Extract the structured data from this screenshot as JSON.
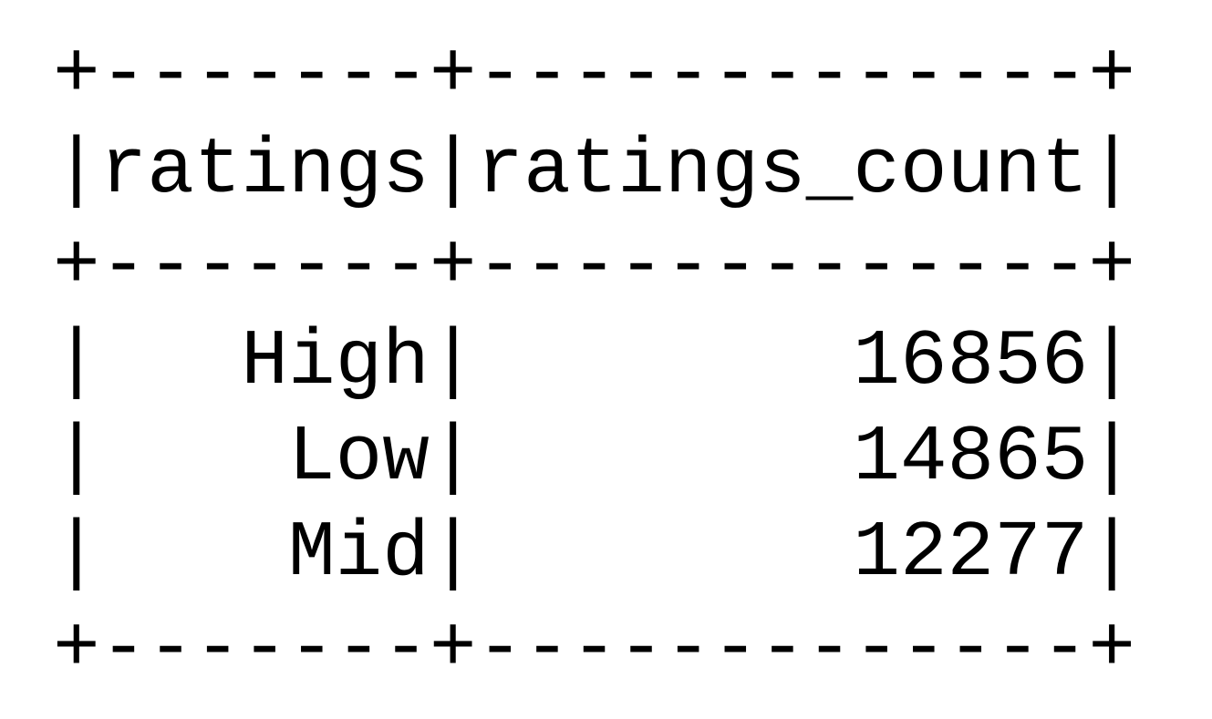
{
  "output": {
    "lines": [
      "+-------+-------------+",
      "|ratings|ratings_count|",
      "+-------+-------------+",
      "|   High|        16856|",
      "|    Low|        14865|",
      "|    Mid|        12277|",
      "+-------+-------------+"
    ]
  },
  "table": {
    "columns": [
      "ratings",
      "ratings_count"
    ],
    "rows": [
      [
        "High",
        "16856"
      ],
      [
        "Low",
        "14865"
      ],
      [
        "Mid",
        "12277"
      ]
    ]
  },
  "colors": {
    "text": "#000000",
    "background": "#ffffff"
  }
}
